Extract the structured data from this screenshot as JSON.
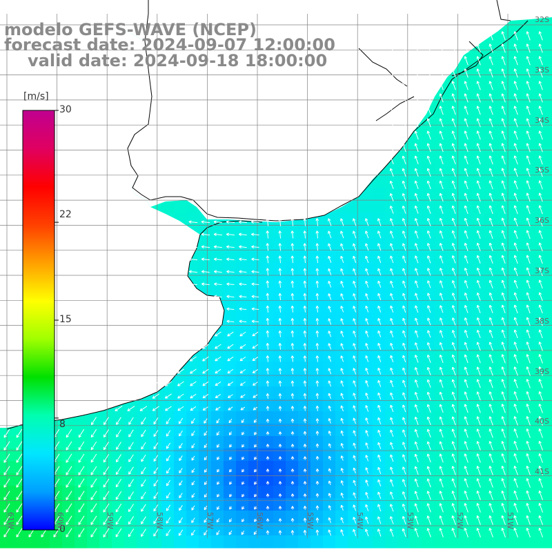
{
  "title": {
    "line1": "modelo GEFS-WAVE (NCEP)",
    "line2": "forecast date: 2024-09-07 12:00:00",
    "line3": "valid date: 2024-09-18 18:00:00"
  },
  "colorbar": {
    "unit": "[m/s]",
    "ticks": [
      "30",
      "22",
      "15",
      "8",
      "0"
    ],
    "tick_values": [
      30,
      22,
      15,
      8,
      0
    ],
    "min": 0,
    "max": 30,
    "colors": [
      "#0000ff",
      "#00a0ff",
      "#00e6ff",
      "#00ffb0",
      "#00e000",
      "#a0ff00",
      "#ffff00",
      "#ffa000",
      "#ff4000",
      "#ff0000",
      "#e00060",
      "#c00090"
    ]
  },
  "lat_labels": [
    "32S",
    "33S",
    "34S",
    "35S",
    "36S",
    "37S",
    "38S",
    "39S",
    "40S",
    "41S"
  ],
  "lon_labels": [
    "61W",
    "60W",
    "59W",
    "58W",
    "57W",
    "56W",
    "55W",
    "54W",
    "53W",
    "52W",
    "51W"
  ],
  "colors": {
    "land": "#ffffff",
    "coast": "#000000",
    "grid": "#808080",
    "arrow": "#ffffff",
    "title": "#8a8a8a"
  }
}
